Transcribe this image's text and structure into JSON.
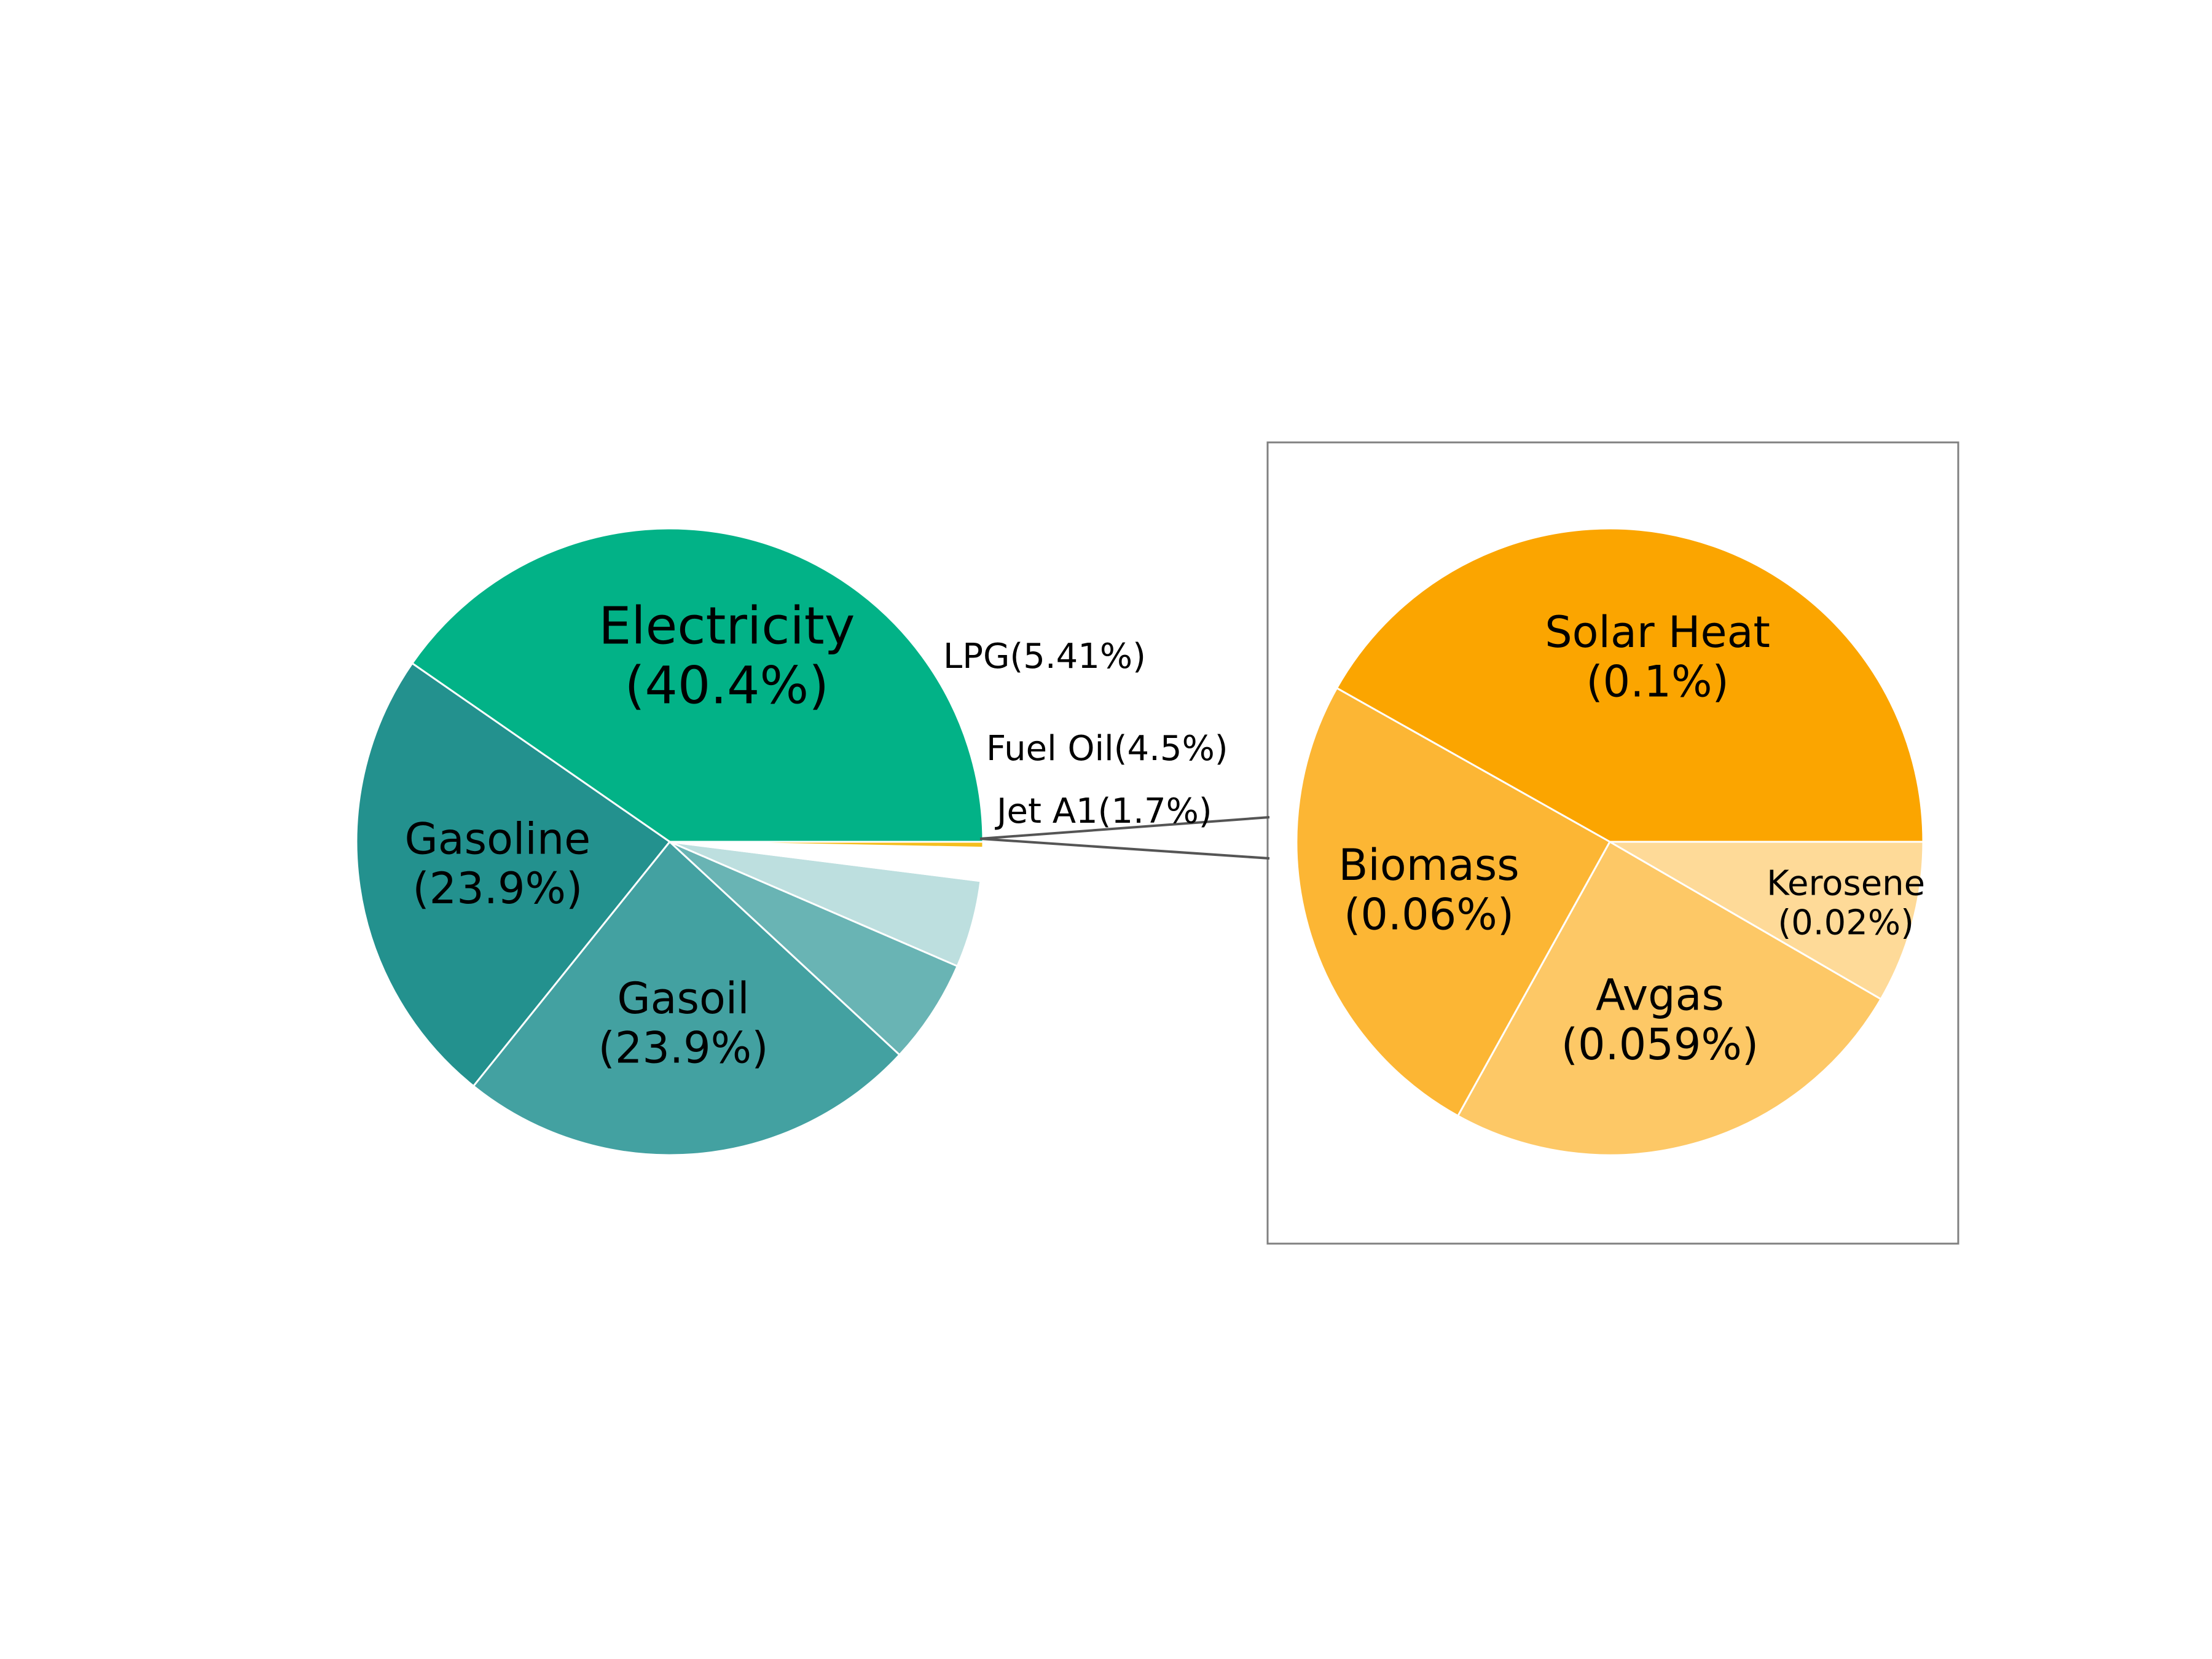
{
  "chart_data": [
    {
      "type": "pie",
      "title": "",
      "slices": [
        {
          "label": "Electricity",
          "pct_text": "(40.4%)",
          "value": 40.4,
          "color": "#02B287",
          "label_style": "inside",
          "font": "large"
        },
        {
          "label": "Gasoline",
          "pct_text": "(23.9%)",
          "value": 23.9,
          "color": "#23918E",
          "label_style": "inside",
          "font": "medium"
        },
        {
          "label": "Gasoil",
          "pct_text": "(23.9%)",
          "value": 23.9,
          "color": "#43A1A1",
          "label_style": "inside",
          "font": "medium"
        },
        {
          "label": "LPG",
          "pct_text": "(5.41%)",
          "value": 5.41,
          "color": "#69B4B4",
          "label_style": "outside",
          "font": "small"
        },
        {
          "label": "Fuel Oil",
          "pct_text": "(4.5%)",
          "value": 4.5,
          "color": "#BDDFDF",
          "label_style": "outside",
          "font": "small"
        },
        {
          "label": "Jet A1",
          "pct_text": "(1.7%)",
          "value": 1.7,
          "color": "#FFFFFF",
          "label_style": "outside",
          "font": "small"
        },
        {
          "label": "",
          "pct_text": "",
          "value": 0.3,
          "color": "#F5BE1E",
          "label_style": "none",
          "font": "small"
        }
      ]
    },
    {
      "type": "pie",
      "title": "",
      "framed": true,
      "slices": [
        {
          "label": "Solar Heat",
          "pct_text": "(0.1%)",
          "value": 0.1,
          "color": "#FBA500",
          "label_style": "inside",
          "font": "medium"
        },
        {
          "label": "Biomass",
          "pct_text": "(0.06%)",
          "value": 0.06,
          "color": "#FCB634",
          "label_style": "inside",
          "font": "medium"
        },
        {
          "label": "Avgas",
          "pct_text": "(0.059%)",
          "value": 0.059,
          "color": "#FDC866",
          "label_style": "inside",
          "font": "medium"
        },
        {
          "label": "Kerosene",
          "pct_text": "(0.02%)",
          "value": 0.02,
          "color": "#FEDA98",
          "label_style": "inside",
          "font": "small"
        }
      ]
    }
  ]
}
